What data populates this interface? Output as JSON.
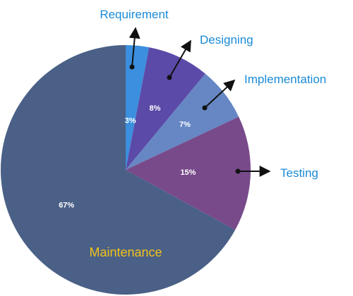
{
  "chart_data": {
    "type": "pie",
    "slices": [
      {
        "label": "Requirement",
        "value": 3,
        "value_label": "3%",
        "color": "#3b8fde"
      },
      {
        "label": "Designing",
        "value": 8,
        "value_label": "8%",
        "color": "#5b4aa8"
      },
      {
        "label": "Implementation",
        "value": 7,
        "value_label": "7%",
        "color": "#6687c4"
      },
      {
        "label": "Testing",
        "value": 15,
        "value_label": "15%",
        "color": "#784a8a"
      },
      {
        "label": "Maintenance",
        "value": 67,
        "value_label": "67%",
        "color": "#4a6086"
      }
    ],
    "start": "12 o'clock",
    "direction": "clockwise",
    "label_color": "#1a8ad6",
    "maintenance_label_color": "#f2c21b"
  }
}
